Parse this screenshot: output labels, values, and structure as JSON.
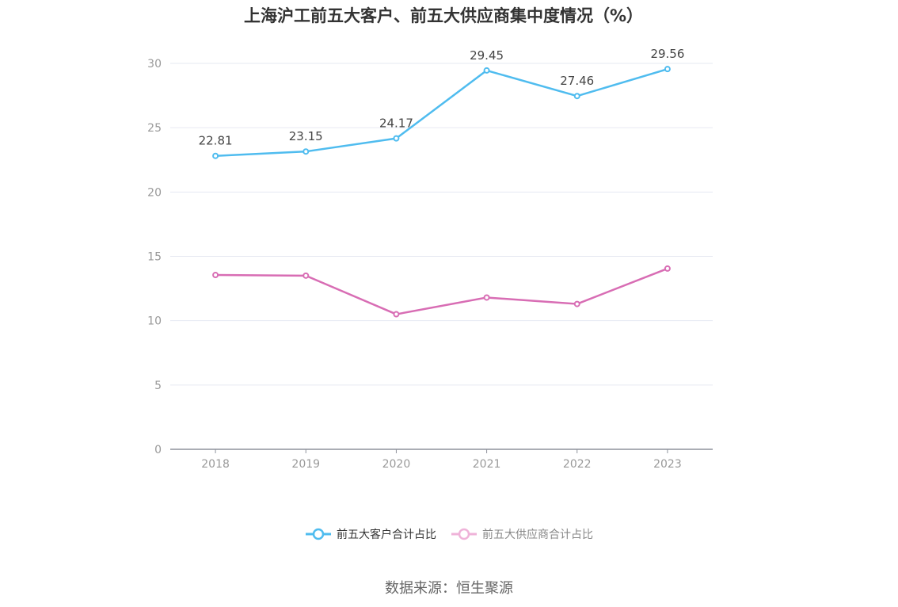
{
  "chart_data": {
    "type": "line",
    "title": "上海沪工前五大客户、前五大供应商集中度情况（%）",
    "categories": [
      "2018",
      "2019",
      "2020",
      "2021",
      "2022",
      "2023"
    ],
    "ylim": [
      0,
      30
    ],
    "yticks": [
      "0",
      "5",
      "10",
      "15",
      "20",
      "25",
      "30"
    ],
    "grid": true,
    "legend_position": "bottom",
    "series": [
      {
        "name": "前五大客户合计占比",
        "color": "#4fbcef",
        "values": [
          22.81,
          23.15,
          24.17,
          29.45,
          27.46,
          29.56
        ],
        "labels": [
          "22.81",
          "23.15",
          "24.17",
          "29.45",
          "27.46",
          "29.56"
        ]
      },
      {
        "name": "前五大供应商合计占比",
        "color": "#d86db4",
        "values": [
          13.55,
          13.5,
          10.5,
          11.8,
          11.3,
          14.05
        ]
      }
    ]
  },
  "source": "数据来源：恒生聚源"
}
